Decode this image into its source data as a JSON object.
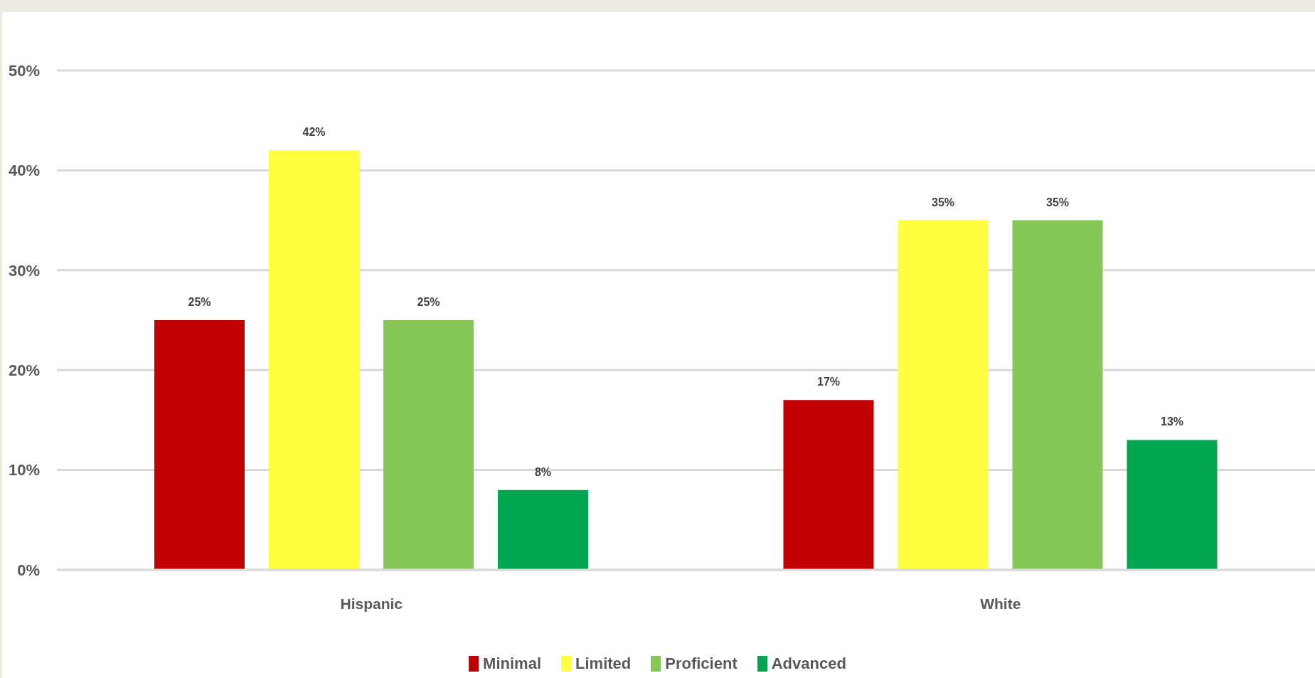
{
  "chart_data": {
    "type": "bar",
    "categories": [
      "Hispanic",
      "White"
    ],
    "series": [
      {
        "name": "Minimal",
        "color": "#c00000",
        "values": [
          25,
          17
        ],
        "value_labels": [
          "25%",
          "17%"
        ]
      },
      {
        "name": "Limited",
        "color": "#ffff40",
        "values": [
          42,
          35
        ],
        "value_labels": [
          "42%",
          "35%"
        ]
      },
      {
        "name": "Proficient",
        "color": "#86c858",
        "values": [
          25,
          35
        ],
        "value_labels": [
          "25%",
          "35%"
        ]
      },
      {
        "name": "Advanced",
        "color": "#00a650",
        "values": [
          8,
          13
        ],
        "value_labels": [
          "8%",
          "13%"
        ]
      }
    ],
    "ylim": [
      0,
      50
    ],
    "yticks": [
      {
        "value": 0,
        "label": "0%"
      },
      {
        "value": 10,
        "label": "10%"
      },
      {
        "value": 20,
        "label": "20%"
      },
      {
        "value": 30,
        "label": "30%"
      },
      {
        "value": 40,
        "label": "40%"
      },
      {
        "value": 50,
        "label": "50%"
      }
    ],
    "grid": "y",
    "legend": "bottom"
  }
}
